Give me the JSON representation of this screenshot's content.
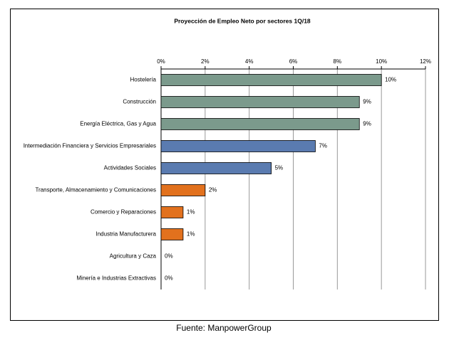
{
  "chart_data": {
    "type": "bar",
    "orientation": "horizontal",
    "title": "Proyección de Empleo Neto por sectores  1Q/18",
    "categories": [
      "Hostelería",
      "Construcción",
      "Energía Eléctrica, Gas y Agua",
      "Intermediación Financiera y Servicios Empresariales",
      "Actividades Sociales",
      "Transporte, Almacenamiento y Comunicaciones",
      "Comercio y Reparaciones",
      "Industria Manufacturera",
      "Agricultura y Caza",
      "Minería e Industrias Extractivas"
    ],
    "values": [
      10,
      9,
      9,
      7,
      5,
      2,
      1,
      1,
      0,
      0
    ],
    "value_labels": [
      "10%",
      "9%",
      "9%",
      "7%",
      "5%",
      "2%",
      "1%",
      "1%",
      "0%",
      "0%"
    ],
    "colors": [
      "#7b9a8c",
      "#7b9a8c",
      "#7b9a8c",
      "#5a7bb0",
      "#5a7bb0",
      "#e2711d",
      "#e2711d",
      "#e2711d",
      "#e2711d",
      "#e2711d"
    ],
    "xlim": [
      0,
      12
    ],
    "xticks": [
      {
        "value": 0,
        "label": "0%"
      },
      {
        "value": 2,
        "label": "2%"
      },
      {
        "value": 4,
        "label": "4%"
      },
      {
        "value": 6,
        "label": "6%"
      },
      {
        "value": 8,
        "label": "8%"
      },
      {
        "value": 10,
        "label": "10%"
      },
      {
        "value": 12,
        "label": "12%"
      }
    ],
    "grid": true,
    "source": "Fuente: ManpowerGroup"
  }
}
